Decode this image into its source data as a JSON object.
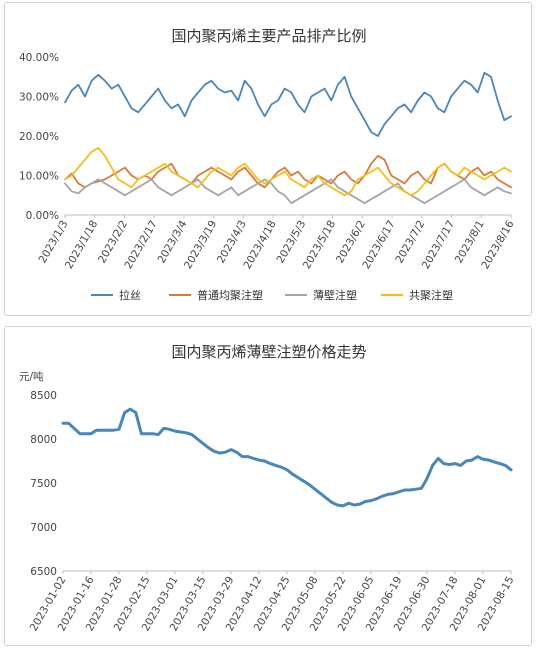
{
  "chart_data": [
    {
      "type": "line",
      "title": "国内聚丙烯主要产品排产比例",
      "y_ticks": [
        "0.00%",
        "10.00%",
        "20.00%",
        "30.00%",
        "40.00%"
      ],
      "ylim": [
        0,
        40
      ],
      "x_ticks": [
        "2023/1/3",
        "2023/1/18",
        "2023/2/2",
        "2023/2/17",
        "2023/3/4",
        "2023/3/19",
        "2023/4/3",
        "2023/4/18",
        "2023/5/3",
        "2023/5/18",
        "2023/6/2",
        "2023/6/17",
        "2023/7/2",
        "2023/7/17",
        "2023/8/1",
        "2023/8/16"
      ],
      "legend_position": "bottom",
      "series": [
        {
          "name": "拉丝",
          "color": "#4a86b8",
          "values": [
            28.5,
            31.5,
            33,
            30,
            34,
            35.5,
            34,
            32,
            33,
            30,
            27,
            26,
            28,
            30,
            32,
            29,
            27,
            28,
            25,
            29,
            31,
            33,
            34,
            32,
            31,
            31.5,
            29,
            34,
            32,
            28,
            25,
            28,
            29,
            32,
            31,
            28,
            26,
            30,
            31,
            32,
            29,
            33,
            35,
            30,
            27,
            24,
            21,
            20,
            23,
            25,
            27,
            28,
            26,
            29,
            31,
            30,
            27,
            26,
            30,
            32,
            34,
            33,
            31,
            36,
            35,
            29,
            24,
            25
          ]
        },
        {
          "name": "普通均聚注塑",
          "color": "#d97a3a",
          "values": [
            9,
            10.5,
            8,
            7,
            8,
            8.5,
            9,
            10,
            11,
            12,
            10,
            9,
            10,
            9,
            11,
            12,
            13,
            10,
            9,
            8,
            10,
            11,
            12,
            11,
            10,
            9,
            11,
            12,
            10,
            8,
            7,
            9,
            11,
            12,
            10,
            11,
            9,
            8,
            10,
            9,
            8,
            10,
            11,
            9,
            8,
            10,
            13,
            15,
            14,
            10,
            9,
            8,
            10,
            11,
            9,
            8,
            12,
            13,
            11,
            10,
            9,
            11,
            12,
            10,
            11,
            9,
            8,
            7
          ]
        },
        {
          "name": "薄壁注塑",
          "color": "#a6a6a6",
          "values": [
            8,
            6,
            5.5,
            7,
            8,
            9,
            8,
            7,
            6,
            5,
            6,
            7,
            8,
            9,
            7,
            6,
            5,
            6,
            7,
            8,
            9,
            7,
            6,
            5,
            6,
            7,
            5,
            6,
            7,
            8,
            9,
            8,
            6,
            5,
            3,
            4,
            5,
            6,
            7,
            8,
            9,
            7,
            6,
            5,
            4,
            3,
            4,
            5,
            6,
            7,
            8,
            6,
            5,
            4,
            3,
            4,
            5,
            6,
            7,
            8,
            9,
            7,
            6,
            5,
            6,
            7,
            6,
            5.5
          ]
        },
        {
          "name": "共聚注塑",
          "color": "#f2c01c",
          "values": [
            9,
            10,
            12,
            14,
            16,
            17,
            15,
            12,
            9,
            8,
            7,
            9,
            10,
            11,
            12,
            13,
            11,
            10,
            9,
            8,
            7,
            9,
            11,
            12,
            11,
            10,
            12,
            13,
            11,
            9,
            8,
            9,
            10,
            11,
            9,
            8,
            7,
            9,
            10,
            8,
            7,
            6,
            5,
            6,
            9,
            10,
            11,
            12,
            10,
            8,
            7,
            6,
            5,
            6,
            8,
            10,
            12,
            13,
            11,
            10,
            12,
            11,
            10,
            9,
            10,
            11,
            12,
            11
          ]
        }
      ]
    },
    {
      "type": "line",
      "title": "国内聚丙烯薄壁注塑价格走势",
      "ylabel": "元/吨",
      "y_ticks": [
        "6500",
        "7000",
        "7500",
        "8000",
        "8500"
      ],
      "ylim": [
        6500,
        8500
      ],
      "x_ticks": [
        "2023-01-02",
        "2023-01-16",
        "2023-01-28",
        "2023-02-15",
        "2023-03-01",
        "2023-03-15",
        "2023-03-29",
        "2023-04-12",
        "2023-04-25",
        "2023-05-08",
        "2023-05-22",
        "2023-06-05",
        "2023-06-19",
        "2023-06-30",
        "2023-07-18",
        "2023-08-01",
        "2023-08-15"
      ],
      "legend_position": "none",
      "series": [
        {
          "name": "",
          "color": "#4a86b8",
          "values": [
            8180,
            8180,
            8120,
            8060,
            8060,
            8060,
            8100,
            8100,
            8100,
            8100,
            8110,
            8300,
            8340,
            8300,
            8060,
            8060,
            8060,
            8050,
            8120,
            8110,
            8090,
            8080,
            8070,
            8050,
            8000,
            7950,
            7900,
            7860,
            7840,
            7850,
            7880,
            7850,
            7800,
            7800,
            7780,
            7760,
            7750,
            7720,
            7700,
            7680,
            7650,
            7600,
            7560,
            7520,
            7480,
            7430,
            7380,
            7330,
            7280,
            7250,
            7240,
            7270,
            7250,
            7260,
            7290,
            7300,
            7320,
            7350,
            7370,
            7380,
            7400,
            7420,
            7420,
            7430,
            7440,
            7550,
            7700,
            7780,
            7720,
            7710,
            7720,
            7700,
            7750,
            7760,
            7800,
            7770,
            7760,
            7740,
            7720,
            7700,
            7650
          ]
        }
      ]
    }
  ]
}
